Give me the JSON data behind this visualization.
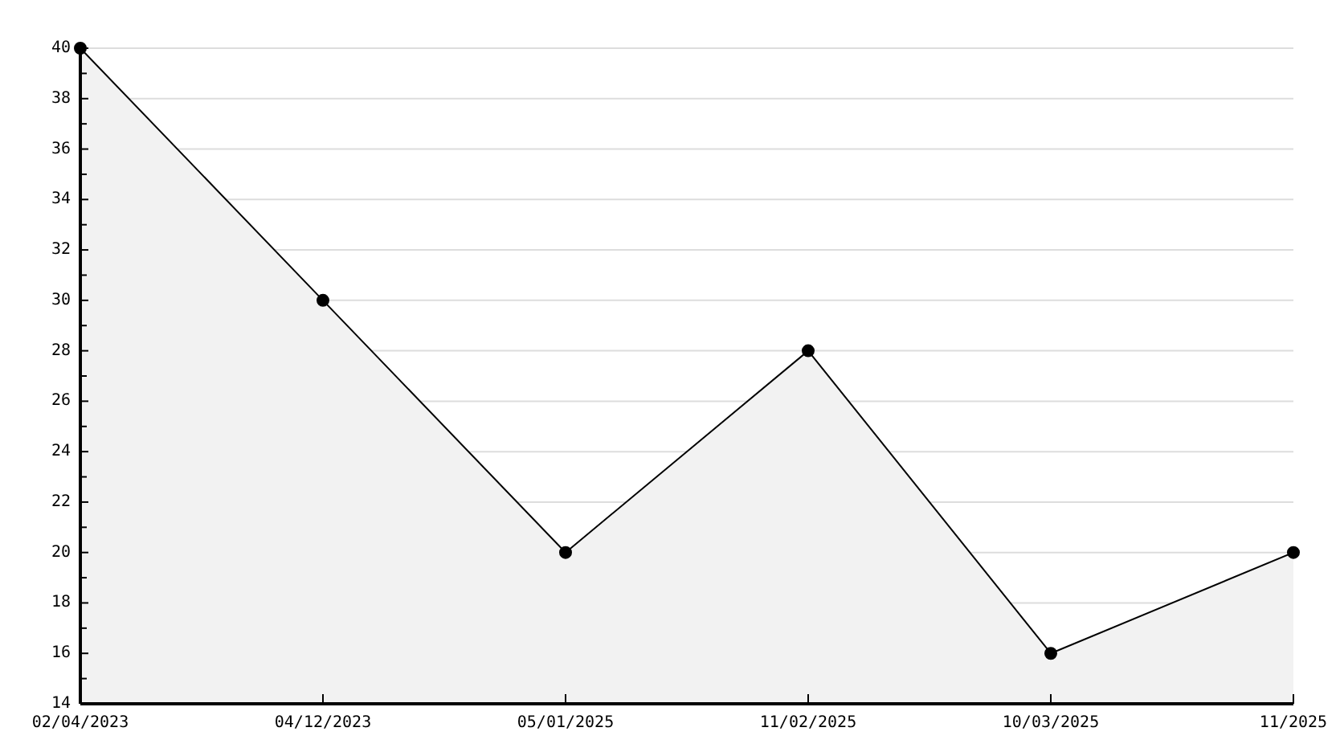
{
  "chart_data": {
    "type": "area",
    "categories": [
      "02/04/2023",
      "04/12/2023",
      "05/01/2025",
      "11/02/2025",
      "10/03/2025",
      "11/2025"
    ],
    "values": [
      40,
      30,
      20,
      28,
      16,
      20
    ],
    "color": "#f2f2f2",
    "ylim": [
      14,
      40
    ],
    "yticks": [
      14,
      {
        "value": 15,
        "label": null
      },
      16,
      {
        "value": 17,
        "label": null
      },
      18,
      {
        "value": 19,
        "label": null
      },
      20,
      {
        "value": 21,
        "label": null
      },
      22,
      {
        "value": 23,
        "label": null
      },
      24,
      {
        "value": 25,
        "label": null
      },
      26,
      {
        "value": 27,
        "label": null
      },
      28,
      {
        "value": 29,
        "label": null
      },
      30,
      {
        "value": 31,
        "label": null
      },
      32,
      {
        "value": 33,
        "label": null
      },
      34,
      {
        "value": 35,
        "label": null
      },
      36,
      {
        "value": 37,
        "label": null
      },
      38,
      {
        "value": 39,
        "label": null
      },
      40
    ],
    "grid": "y",
    "marker": "circle",
    "line_style": "solid"
  }
}
